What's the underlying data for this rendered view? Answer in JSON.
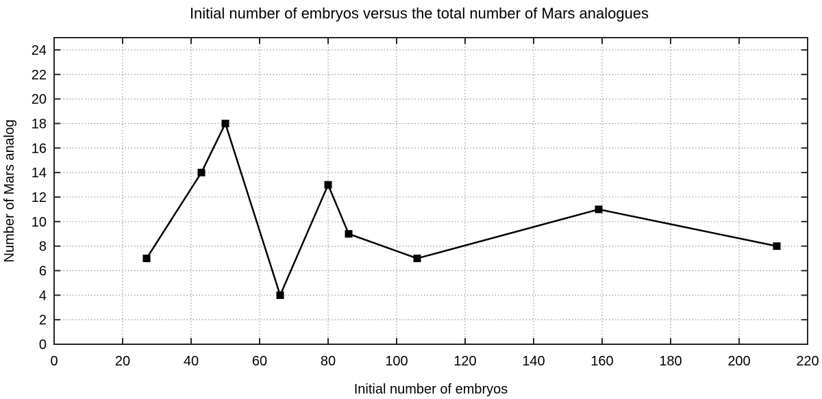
{
  "chart_data": {
    "type": "line",
    "title": "Initial number of embryos versus the total number of Mars analogues",
    "xlabel": "Initial number of embryos",
    "ylabel": "Number of Mars analog",
    "x": [
      27,
      43,
      50,
      66,
      80,
      86,
      106,
      159,
      211
    ],
    "y": [
      7,
      14,
      18,
      4,
      13,
      9,
      7,
      11,
      8
    ],
    "xlim": [
      0,
      220
    ],
    "ylim": [
      0,
      25
    ],
    "x_ticks": [
      0,
      20,
      40,
      60,
      80,
      100,
      120,
      140,
      160,
      180,
      200,
      220
    ],
    "y_ticks": [
      0,
      2,
      4,
      6,
      8,
      10,
      12,
      14,
      16,
      18,
      20,
      22,
      24
    ],
    "grid": "dotted",
    "legend": "none",
    "line_color": "#000000",
    "marker": "filled-square",
    "marker_color": "#000000",
    "grid_color": "#909090",
    "axis_color": "#262626",
    "background": "#ffffff"
  }
}
